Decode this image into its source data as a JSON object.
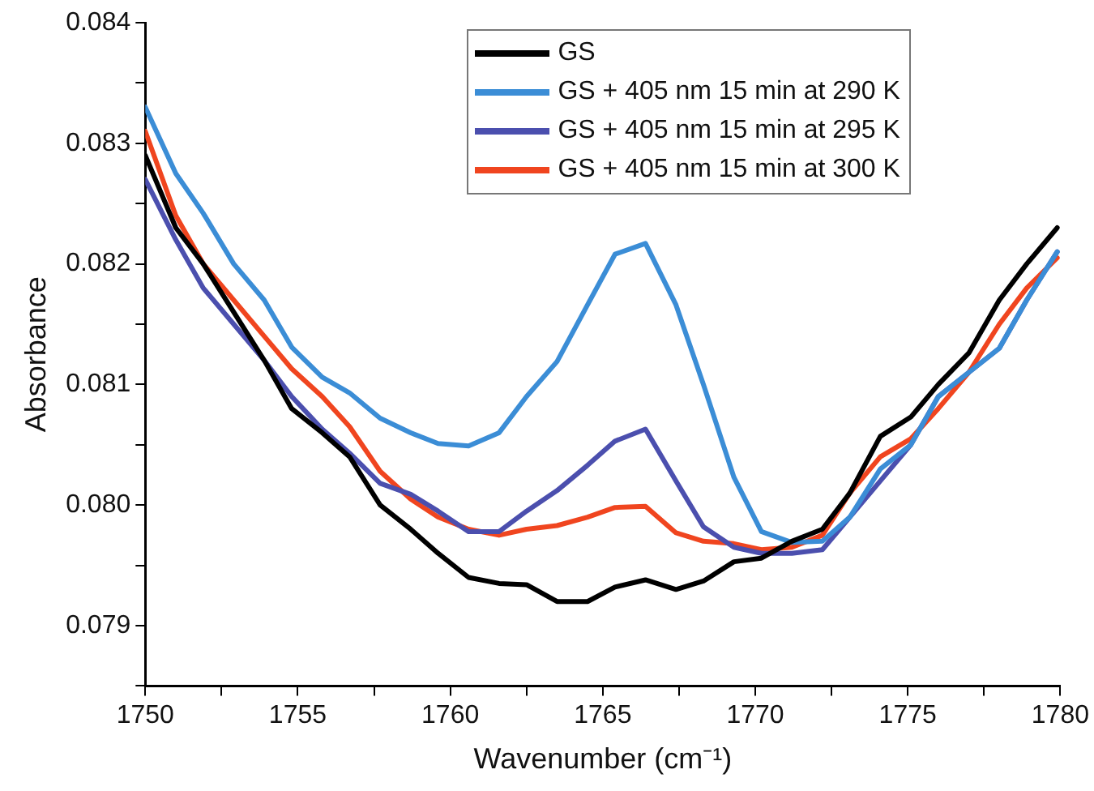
{
  "chart_data": {
    "type": "line",
    "xlabel": "Wavenumber (cm⁻¹)",
    "ylabel": "Absorbance",
    "x": [
      1750.0,
      1751.0,
      1751.9,
      1752.9,
      1753.9,
      1754.8,
      1755.8,
      1756.7,
      1757.7,
      1758.7,
      1759.6,
      1760.6,
      1761.6,
      1762.5,
      1763.5,
      1764.5,
      1765.4,
      1766.4,
      1767.4,
      1768.3,
      1769.3,
      1770.2,
      1771.2,
      1772.2,
      1773.1,
      1774.1,
      1775.1,
      1776.0,
      1777.0,
      1778.0,
      1778.9,
      1779.9
    ],
    "series": [
      {
        "name": "GS",
        "color": "#000000",
        "values": [
          0.0829,
          0.0823,
          0.082,
          0.0816,
          0.0812,
          0.0808,
          0.0806,
          0.0804,
          0.08,
          0.0798,
          0.0796,
          0.0794,
          0.07935,
          0.07934,
          0.0792,
          0.0792,
          0.07932,
          0.07938,
          0.0793,
          0.07937,
          0.07953,
          0.07956,
          0.0797,
          0.0798,
          0.0801,
          0.08057,
          0.08073,
          0.081,
          0.08126,
          0.0817,
          0.082,
          0.0823
        ]
      },
      {
        "name": "GS + 405 nm 15 min at 290 K",
        "color": "#3b8dd6",
        "values": [
          0.0833,
          0.08275,
          0.08242,
          0.082,
          0.0817,
          0.08131,
          0.08106,
          0.08093,
          0.08072,
          0.0806,
          0.08051,
          0.08049,
          0.0806,
          0.0809,
          0.08119,
          0.08166,
          0.08208,
          0.08217,
          0.08166,
          0.081,
          0.08023,
          0.07978,
          0.07969,
          0.0797,
          0.0799,
          0.0803,
          0.0805,
          0.0809,
          0.0811,
          0.0813,
          0.0817,
          0.0821
        ]
      },
      {
        "name": "GS + 405 nm 15 min at 295 K",
        "color": "#4b4fae",
        "values": [
          0.0827,
          0.0822,
          0.0818,
          0.0815,
          0.0812,
          0.0809,
          0.08063,
          0.08043,
          0.08018,
          0.08009,
          0.07995,
          0.07978,
          0.07978,
          0.07995,
          0.08012,
          0.08033,
          0.08053,
          0.08063,
          0.0802,
          0.07982,
          0.07965,
          0.0796,
          0.0796,
          0.07963,
          0.0799,
          0.0802,
          0.0805,
          0.0809,
          0.0811,
          0.0813,
          0.0817,
          0.0821
        ]
      },
      {
        "name": "GS + 405 nm 15 min at 300 K",
        "color": "#f0451f",
        "values": [
          0.0831,
          0.0824,
          0.082,
          0.0817,
          0.0814,
          0.08113,
          0.0809,
          0.08065,
          0.08028,
          0.08005,
          0.0799,
          0.0798,
          0.07975,
          0.0798,
          0.07983,
          0.0799,
          0.07998,
          0.07999,
          0.07977,
          0.0797,
          0.07968,
          0.07963,
          0.07965,
          0.07975,
          0.0801,
          0.0804,
          0.08055,
          0.0808,
          0.0811,
          0.0815,
          0.0818,
          0.08205
        ]
      }
    ],
    "xlim": [
      1750,
      1780
    ],
    "xticks": [
      1750,
      {
        "value": 1752.5,
        "label": null
      },
      1755,
      {
        "value": 1757.5,
        "label": null
      },
      1760,
      {
        "value": 1762.5,
        "label": null
      },
      1765,
      {
        "value": 1767.5,
        "label": null
      },
      1770,
      {
        "value": 1772.5,
        "label": null
      },
      1775,
      {
        "value": 1777.5,
        "label": null
      },
      1780
    ],
    "ylim": [
      0.0785,
      0.084
    ],
    "yticks": [
      {
        "value": 0.0785,
        "label": null
      },
      {
        "value": 0.079,
        "label": "0.079"
      },
      {
        "value": 0.0795,
        "label": null
      },
      {
        "value": 0.08,
        "label": "0.080"
      },
      {
        "value": 0.0805,
        "label": null
      },
      {
        "value": 0.081,
        "label": "0.081"
      },
      {
        "value": 0.0815,
        "label": null
      },
      {
        "value": 0.082,
        "label": "0.082"
      },
      {
        "value": 0.0825,
        "label": null
      },
      {
        "value": 0.083,
        "label": "0.083"
      },
      {
        "value": 0.0835,
        "label": null
      },
      {
        "value": 0.084,
        "label": "0.084"
      }
    ],
    "grid": false,
    "legend": "top right",
    "marker": "none",
    "line_style": "solid"
  }
}
